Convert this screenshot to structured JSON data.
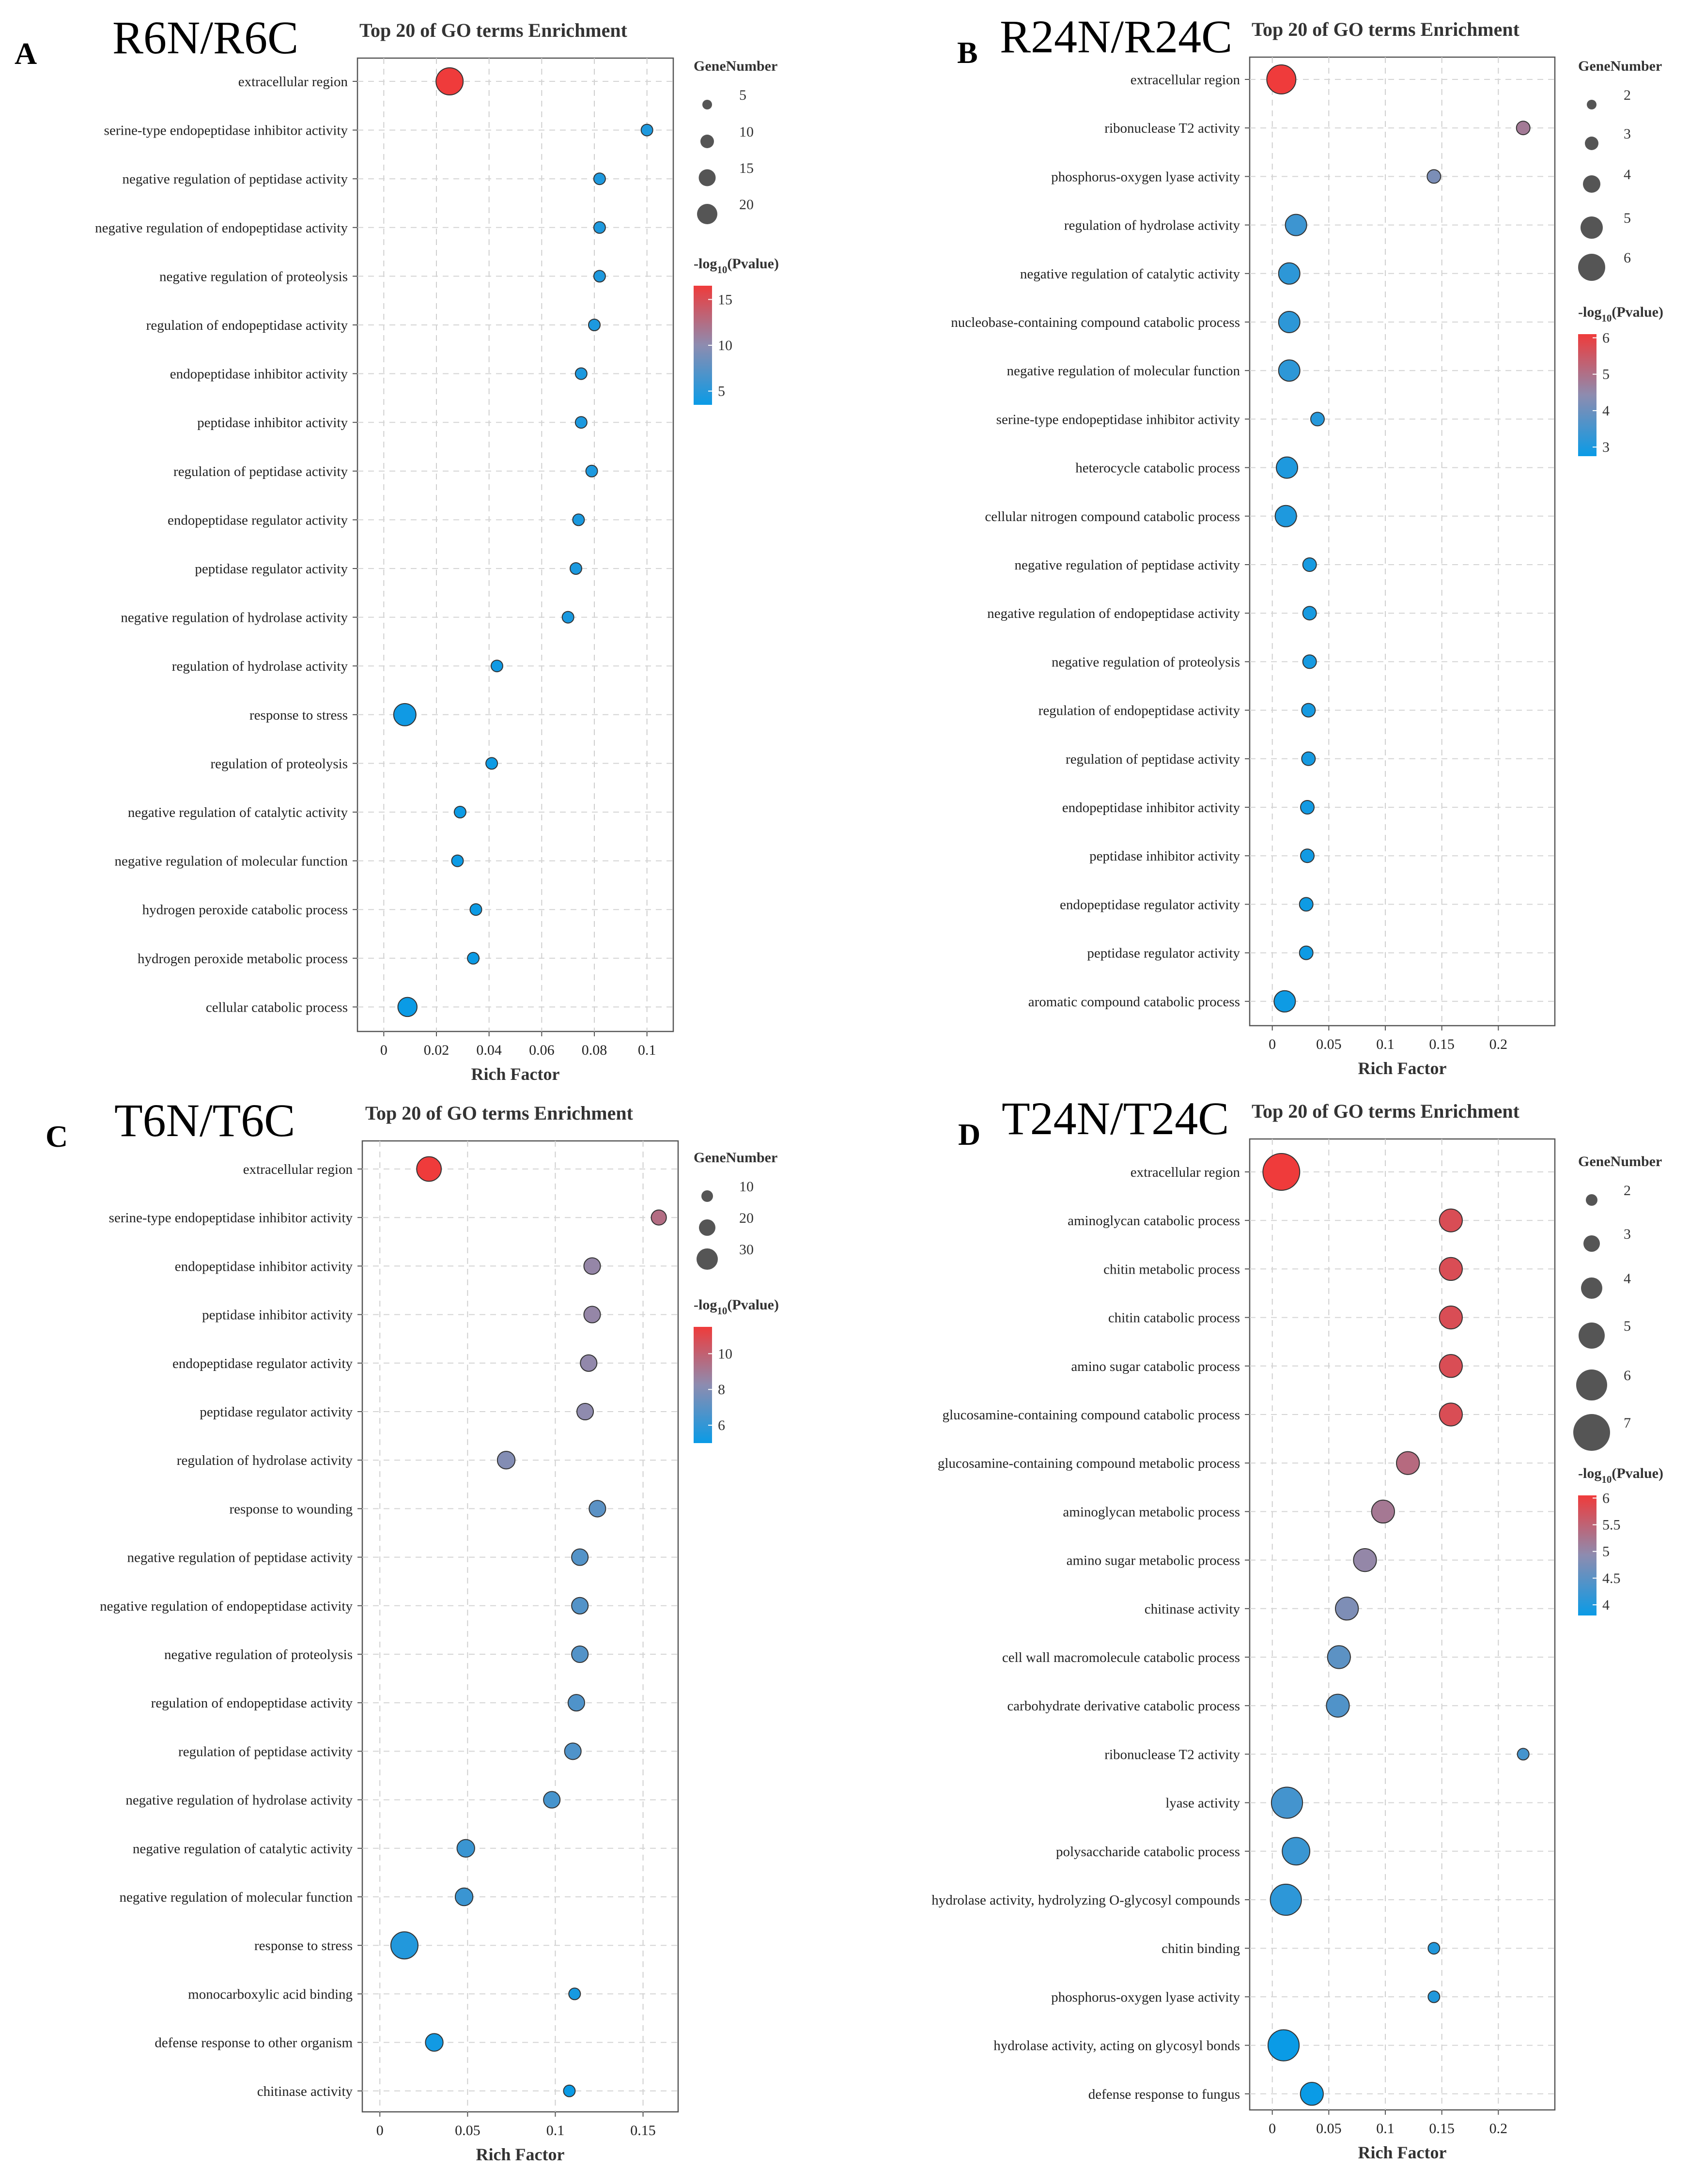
{
  "colors": {
    "low": "#0a9be6",
    "mid": "#8d8cb0",
    "high": "#ef3b3b"
  },
  "chart_data": [
    {
      "type": "scatter",
      "panel_letter": "A",
      "comparison": "R6N/R6C",
      "title": "Top 20 of GO terms Enrichment",
      "xlabel": "Rich Factor",
      "xlim": [
        -0.01,
        0.11
      ],
      "xticks": [
        0,
        0.02,
        0.04,
        0.06,
        0.08,
        0.1
      ],
      "xtick_labels": [
        "0",
        "0.02",
        "0.04",
        "0.06",
        "0.08",
        "0.1"
      ],
      "size_legend": {
        "title": "GeneNumber",
        "values": [
          5,
          10,
          15,
          20
        ],
        "labels": [
          "5",
          "10",
          "15",
          "20"
        ]
      },
      "color_legend": {
        "title_prefix": "-log",
        "title_sub": "10",
        "title_suffix": "(Pvalue)",
        "range": [
          3.5,
          16.5
        ],
        "ticks": [
          15,
          10,
          5
        ],
        "tick_labels": [
          "15",
          "10",
          "5"
        ]
      },
      "terms": [
        {
          "term": "extracellular region",
          "rich_factor": 0.025,
          "gene_number": 20,
          "neg_log10_p": 16.5
        },
        {
          "term": "serine-type endopeptidase inhibitor activity",
          "rich_factor": 0.1,
          "gene_number": 3,
          "neg_log10_p": 4.5
        },
        {
          "term": "negative regulation of peptidase activity",
          "rich_factor": 0.082,
          "gene_number": 3,
          "neg_log10_p": 4.5
        },
        {
          "term": "negative regulation of endopeptidase activity",
          "rich_factor": 0.082,
          "gene_number": 3,
          "neg_log10_p": 4.5
        },
        {
          "term": "negative regulation of proteolysis",
          "rich_factor": 0.082,
          "gene_number": 3,
          "neg_log10_p": 4.5
        },
        {
          "term": "regulation of endopeptidase activity",
          "rich_factor": 0.08,
          "gene_number": 3,
          "neg_log10_p": 4.4
        },
        {
          "term": "endopeptidase inhibitor activity",
          "rich_factor": 0.075,
          "gene_number": 3,
          "neg_log10_p": 4.4
        },
        {
          "term": "peptidase inhibitor activity",
          "rich_factor": 0.075,
          "gene_number": 3,
          "neg_log10_p": 4.4
        },
        {
          "term": "regulation of peptidase activity",
          "rich_factor": 0.079,
          "gene_number": 3,
          "neg_log10_p": 4.4
        },
        {
          "term": "endopeptidase regulator activity",
          "rich_factor": 0.074,
          "gene_number": 3,
          "neg_log10_p": 4.3
        },
        {
          "term": "peptidase regulator activity",
          "rich_factor": 0.073,
          "gene_number": 3,
          "neg_log10_p": 4.3
        },
        {
          "term": "negative regulation of hydrolase activity",
          "rich_factor": 0.07,
          "gene_number": 3,
          "neg_log10_p": 4.2
        },
        {
          "term": "regulation of hydrolase activity",
          "rich_factor": 0.043,
          "gene_number": 3,
          "neg_log10_p": 3.8
        },
        {
          "term": "response to stress",
          "rich_factor": 0.008,
          "gene_number": 11,
          "neg_log10_p": 3.8
        },
        {
          "term": "regulation of proteolysis",
          "rich_factor": 0.041,
          "gene_number": 3,
          "neg_log10_p": 3.7
        },
        {
          "term": "negative regulation of catalytic activity",
          "rich_factor": 0.029,
          "gene_number": 3,
          "neg_log10_p": 3.6
        },
        {
          "term": "negative regulation of molecular function",
          "rich_factor": 0.028,
          "gene_number": 3,
          "neg_log10_p": 3.6
        },
        {
          "term": "hydrogen peroxide catabolic process",
          "rich_factor": 0.035,
          "gene_number": 3,
          "neg_log10_p": 3.6
        },
        {
          "term": "hydrogen peroxide metabolic process",
          "rich_factor": 0.034,
          "gene_number": 3,
          "neg_log10_p": 3.6
        },
        {
          "term": "cellular catabolic process",
          "rich_factor": 0.009,
          "gene_number": 7,
          "neg_log10_p": 3.5
        }
      ]
    },
    {
      "type": "scatter",
      "panel_letter": "B",
      "comparison": "R24N/R24C",
      "title": "Top 20 of GO terms Enrichment",
      "xlabel": "Rich Factor",
      "xlim": [
        -0.02,
        0.25
      ],
      "xticks": [
        0,
        0.05,
        0.1,
        0.15,
        0.2
      ],
      "xtick_labels": [
        "0",
        "0.05",
        "0.1",
        "0.15",
        "0.2"
      ],
      "size_legend": {
        "title": "GeneNumber",
        "values": [
          2,
          3,
          4,
          5,
          6
        ],
        "labels": [
          "2",
          "3",
          "4",
          "5",
          "6"
        ]
      },
      "color_legend": {
        "title_prefix": "-log",
        "title_sub": "10",
        "title_suffix": "(Pvalue)",
        "range": [
          2.75,
          6.1
        ],
        "ticks": [
          6,
          5,
          4,
          3
        ],
        "tick_labels": [
          "6",
          "5",
          "4",
          "3"
        ]
      },
      "terms": [
        {
          "term": "extracellular region",
          "rich_factor": 0.008,
          "gene_number": 6,
          "neg_log10_p": 6.1
        },
        {
          "term": "ribonuclease T2 activity",
          "rich_factor": 0.222,
          "gene_number": 2,
          "neg_log10_p": 4.8
        },
        {
          "term": "phosphorus-oxygen lyase activity",
          "rich_factor": 0.143,
          "gene_number": 2,
          "neg_log10_p": 4.2
        },
        {
          "term": "regulation of hydrolase activity",
          "rich_factor": 0.021,
          "gene_number": 3,
          "neg_log10_p": 3.4
        },
        {
          "term": "negative regulation of catalytic activity",
          "rich_factor": 0.015,
          "gene_number": 3,
          "neg_log10_p": 3.2
        },
        {
          "term": "nucleobase-containing compound catabolic process",
          "rich_factor": 0.015,
          "gene_number": 3,
          "neg_log10_p": 3.2
        },
        {
          "term": "negative regulation of molecular function",
          "rich_factor": 0.015,
          "gene_number": 3,
          "neg_log10_p": 3.2
        },
        {
          "term": "serine-type endopeptidase inhibitor activity",
          "rich_factor": 0.04,
          "gene_number": 2,
          "neg_log10_p": 3.1
        },
        {
          "term": "heterocycle catabolic process",
          "rich_factor": 0.013,
          "gene_number": 3,
          "neg_log10_p": 3.0
        },
        {
          "term": "cellular nitrogen compound catabolic process",
          "rich_factor": 0.012,
          "gene_number": 3,
          "neg_log10_p": 3.0
        },
        {
          "term": "negative regulation of peptidase activity",
          "rich_factor": 0.033,
          "gene_number": 2,
          "neg_log10_p": 2.9
        },
        {
          "term": "negative regulation of endopeptidase activity",
          "rich_factor": 0.033,
          "gene_number": 2,
          "neg_log10_p": 2.9
        },
        {
          "term": "negative regulation of proteolysis",
          "rich_factor": 0.033,
          "gene_number": 2,
          "neg_log10_p": 2.9
        },
        {
          "term": "regulation of endopeptidase activity",
          "rich_factor": 0.032,
          "gene_number": 2,
          "neg_log10_p": 2.9
        },
        {
          "term": "regulation of peptidase activity",
          "rich_factor": 0.032,
          "gene_number": 2,
          "neg_log10_p": 2.9
        },
        {
          "term": "endopeptidase inhibitor activity",
          "rich_factor": 0.031,
          "gene_number": 2,
          "neg_log10_p": 2.85
        },
        {
          "term": "peptidase inhibitor activity",
          "rich_factor": 0.031,
          "gene_number": 2,
          "neg_log10_p": 2.85
        },
        {
          "term": "endopeptidase regulator activity",
          "rich_factor": 0.03,
          "gene_number": 2,
          "neg_log10_p": 2.8
        },
        {
          "term": "peptidase regulator activity",
          "rich_factor": 0.03,
          "gene_number": 2,
          "neg_log10_p": 2.8
        },
        {
          "term": "aromatic compound catabolic process",
          "rich_factor": 0.011,
          "gene_number": 3,
          "neg_log10_p": 2.8
        }
      ]
    },
    {
      "type": "scatter",
      "panel_letter": "C",
      "comparison": "T6N/T6C",
      "title": "Top 20 of GO terms Enrichment",
      "xlabel": "Rich Factor",
      "xlim": [
        -0.01,
        0.17
      ],
      "xticks": [
        0,
        0.05,
        0.1,
        0.15
      ],
      "xtick_labels": [
        "0",
        "0.05",
        "0.1",
        "0.15"
      ],
      "size_legend": {
        "title": "GeneNumber",
        "values": [
          10,
          20,
          30
        ],
        "labels": [
          "10",
          "20",
          "30"
        ]
      },
      "color_legend": {
        "title_prefix": "-log",
        "title_sub": "10",
        "title_suffix": "(Pvalue)",
        "range": [
          5.0,
          11.5
        ],
        "ticks": [
          10,
          8,
          6
        ],
        "tick_labels": [
          "10",
          "8",
          "6"
        ]
      },
      "terms": [
        {
          "term": "extracellular region",
          "rich_factor": 0.028,
          "gene_number": 20,
          "neg_log10_p": 11.5
        },
        {
          "term": "serine-type endopeptidase inhibitor activity",
          "rich_factor": 0.159,
          "gene_number": 7,
          "neg_log10_p": 9.5
        },
        {
          "term": "endopeptidase inhibitor activity",
          "rich_factor": 0.121,
          "gene_number": 8,
          "neg_log10_p": 8.5
        },
        {
          "term": "peptidase inhibitor activity",
          "rich_factor": 0.121,
          "gene_number": 8,
          "neg_log10_p": 8.5
        },
        {
          "term": "endopeptidase regulator activity",
          "rich_factor": 0.119,
          "gene_number": 8,
          "neg_log10_p": 8.4
        },
        {
          "term": "peptidase regulator activity",
          "rich_factor": 0.117,
          "gene_number": 8,
          "neg_log10_p": 8.3
        },
        {
          "term": "regulation of hydrolase activity",
          "rich_factor": 0.072,
          "gene_number": 9,
          "neg_log10_p": 8.0
        },
        {
          "term": "response to wounding",
          "rich_factor": 0.124,
          "gene_number": 8,
          "neg_log10_p": 7.0
        },
        {
          "term": "negative regulation of peptidase activity",
          "rich_factor": 0.114,
          "gene_number": 8,
          "neg_log10_p": 6.8
        },
        {
          "term": "negative regulation of endopeptidase activity",
          "rich_factor": 0.114,
          "gene_number": 8,
          "neg_log10_p": 6.8
        },
        {
          "term": "negative regulation of proteolysis",
          "rich_factor": 0.114,
          "gene_number": 8,
          "neg_log10_p": 6.8
        },
        {
          "term": "regulation of endopeptidase activity",
          "rich_factor": 0.112,
          "gene_number": 8,
          "neg_log10_p": 6.7
        },
        {
          "term": "regulation of peptidase activity",
          "rich_factor": 0.11,
          "gene_number": 8,
          "neg_log10_p": 6.7
        },
        {
          "term": "negative regulation of hydrolase activity",
          "rich_factor": 0.098,
          "gene_number": 8,
          "neg_log10_p": 6.5
        },
        {
          "term": "negative regulation of catalytic activity",
          "rich_factor": 0.049,
          "gene_number": 9,
          "neg_log10_p": 6.2
        },
        {
          "term": "negative regulation of molecular function",
          "rich_factor": 0.048,
          "gene_number": 9,
          "neg_log10_p": 6.2
        },
        {
          "term": "response to stress",
          "rich_factor": 0.014,
          "gene_number": 26,
          "neg_log10_p": 5.6
        },
        {
          "term": "monocarboxylic acid binding",
          "rich_factor": 0.111,
          "gene_number": 6,
          "neg_log10_p": 5.3
        },
        {
          "term": "defense response to other organism",
          "rich_factor": 0.031,
          "gene_number": 9,
          "neg_log10_p": 5.2
        },
        {
          "term": "chitinase activity",
          "rich_factor": 0.108,
          "gene_number": 6,
          "neg_log10_p": 5.0
        }
      ]
    },
    {
      "type": "scatter",
      "panel_letter": "D",
      "comparison": "T24N/T24C",
      "title": "Top 20 of GO terms Enrichment",
      "xlabel": "Rich Factor",
      "xlim": [
        -0.02,
        0.25
      ],
      "xticks": [
        0,
        0.05,
        0.1,
        0.15,
        0.2
      ],
      "xtick_labels": [
        "0",
        "0.05",
        "0.1",
        "0.15",
        "0.2"
      ],
      "size_legend": {
        "title": "GeneNumber",
        "values": [
          2,
          3,
          4,
          5,
          6,
          7
        ],
        "labels": [
          "2",
          "3",
          "4",
          "5",
          "6",
          "7"
        ]
      },
      "color_legend": {
        "title_prefix": "-log",
        "title_sub": "10",
        "title_suffix": "(Pvalue)",
        "range": [
          3.8,
          6.05
        ],
        "ticks": [
          6,
          5.5,
          5,
          4.5,
          4
        ],
        "tick_labels": [
          "6",
          "5.5",
          "5",
          "4.5",
          "4"
        ]
      },
      "terms": [
        {
          "term": "extracellular region",
          "rich_factor": 0.008,
          "gene_number": 7,
          "neg_log10_p": 6.1
        },
        {
          "term": "aminoglycan catabolic process",
          "rich_factor": 0.158,
          "gene_number": 3,
          "neg_log10_p": 5.8
        },
        {
          "term": "chitin metabolic process",
          "rich_factor": 0.158,
          "gene_number": 3,
          "neg_log10_p": 5.8
        },
        {
          "term": "chitin catabolic process",
          "rich_factor": 0.158,
          "gene_number": 3,
          "neg_log10_p": 5.8
        },
        {
          "term": "amino sugar catabolic process",
          "rich_factor": 0.158,
          "gene_number": 3,
          "neg_log10_p": 5.8
        },
        {
          "term": "glucosamine-containing compound catabolic process",
          "rich_factor": 0.158,
          "gene_number": 3,
          "neg_log10_p": 5.8
        },
        {
          "term": "glucosamine-containing compound metabolic process",
          "rich_factor": 0.12,
          "gene_number": 3,
          "neg_log10_p": 5.4
        },
        {
          "term": "aminoglycan metabolic process",
          "rich_factor": 0.098,
          "gene_number": 3,
          "neg_log10_p": 5.2
        },
        {
          "term": "amino sugar metabolic process",
          "rich_factor": 0.082,
          "gene_number": 3,
          "neg_log10_p": 5.0
        },
        {
          "term": "chitinase activity",
          "rich_factor": 0.066,
          "gene_number": 3,
          "neg_log10_p": 4.8
        },
        {
          "term": "cell wall macromolecule catabolic process",
          "rich_factor": 0.059,
          "gene_number": 3,
          "neg_log10_p": 4.5
        },
        {
          "term": "carbohydrate derivative catabolic process",
          "rich_factor": 0.058,
          "gene_number": 3,
          "neg_log10_p": 4.4
        },
        {
          "term": "ribonuclease T2 activity",
          "rich_factor": 0.222,
          "gene_number": 2,
          "neg_log10_p": 4.3
        },
        {
          "term": "lyase activity",
          "rich_factor": 0.013,
          "gene_number": 5,
          "neg_log10_p": 4.3
        },
        {
          "term": "polysaccharide catabolic process",
          "rich_factor": 0.021,
          "gene_number": 4,
          "neg_log10_p": 4.2
        },
        {
          "term": "hydrolase activity, hydrolyzing O-glycosyl compounds",
          "rich_factor": 0.012,
          "gene_number": 5,
          "neg_log10_p": 4.1
        },
        {
          "term": "chitin binding",
          "rich_factor": 0.143,
          "gene_number": 2,
          "neg_log10_p": 4.0
        },
        {
          "term": "phosphorus-oxygen lyase activity",
          "rich_factor": 0.143,
          "gene_number": 2,
          "neg_log10_p": 4.0
        },
        {
          "term": "hydrolase activity, acting on glycosyl bonds",
          "rich_factor": 0.01,
          "gene_number": 5,
          "neg_log10_p": 3.8
        },
        {
          "term": "defense response to fungus",
          "rich_factor": 0.035,
          "gene_number": 3,
          "neg_log10_p": 3.8
        }
      ]
    }
  ]
}
